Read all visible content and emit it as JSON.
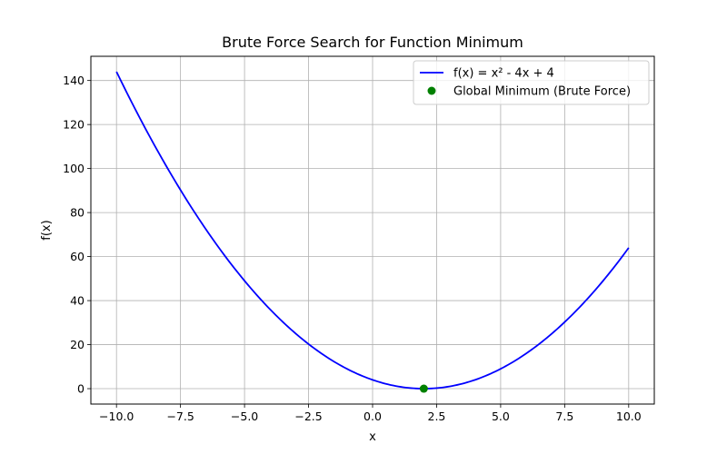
{
  "chart_data": {
    "type": "line",
    "title": "Brute Force Search for Function Minimum",
    "xlabel": "x",
    "ylabel": "f(x)",
    "xlim": [
      -11,
      11
    ],
    "ylim": [
      -7,
      151
    ],
    "grid": true,
    "legend_position": "top-right",
    "x_ticks": [
      {
        "value": -10,
        "label": "−10.0"
      },
      {
        "value": -7.5,
        "label": "−7.5"
      },
      {
        "value": -5,
        "label": "−5.0"
      },
      {
        "value": -2.5,
        "label": "−2.5"
      },
      {
        "value": 0,
        "label": "0.0"
      },
      {
        "value": 2.5,
        "label": "2.5"
      },
      {
        "value": 5,
        "label": "5.0"
      },
      {
        "value": 7.5,
        "label": "7.5"
      },
      {
        "value": 10,
        "label": "10.0"
      }
    ],
    "y_ticks": [
      {
        "value": 0,
        "label": "0"
      },
      {
        "value": 20,
        "label": "20"
      },
      {
        "value": 40,
        "label": "40"
      },
      {
        "value": 60,
        "label": "60"
      },
      {
        "value": 80,
        "label": "80"
      },
      {
        "value": 100,
        "label": "100"
      },
      {
        "value": 120,
        "label": "120"
      },
      {
        "value": 140,
        "label": "140"
      }
    ],
    "series": [
      {
        "name": "f(x) = x² - 4x + 4",
        "type": "line",
        "color": "#0000ff",
        "x": [
          -10,
          -9,
          -8,
          -7,
          -6,
          -5,
          -4,
          -3,
          -2,
          -1,
          0,
          1,
          2,
          3,
          4,
          5,
          6,
          7,
          8,
          9,
          10
        ],
        "y": [
          144,
          121,
          100,
          81,
          64,
          49,
          36,
          25,
          16,
          9,
          4,
          1,
          0,
          1,
          4,
          9,
          16,
          25,
          36,
          49,
          64
        ]
      },
      {
        "name": "Global Minimum (Brute Force)",
        "type": "scatter",
        "color": "#008000",
        "x": [
          2
        ],
        "y": [
          0
        ]
      }
    ]
  }
}
